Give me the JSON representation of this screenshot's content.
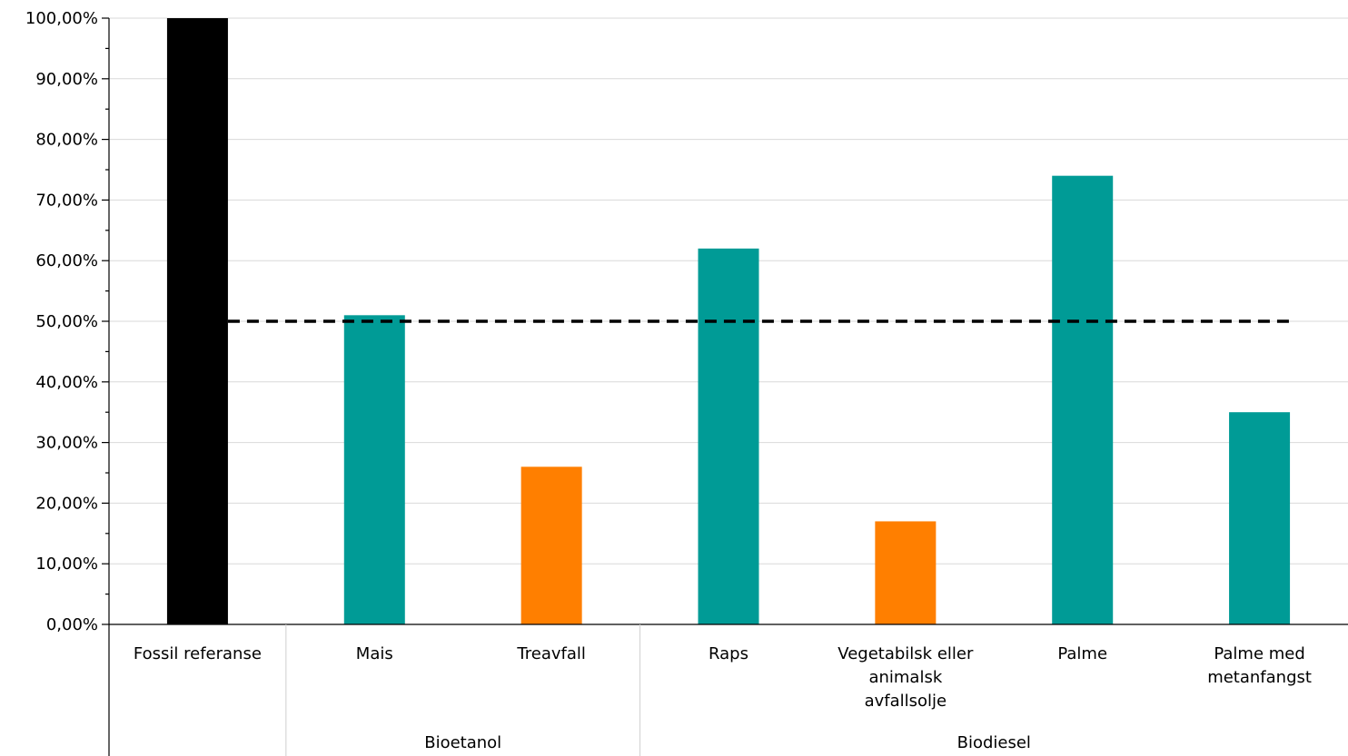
{
  "chart_data": {
    "type": "bar",
    "title": "",
    "xlabel": "",
    "ylabel": "",
    "ylim": [
      0,
      100
    ],
    "y_ticks": [
      "0,00%",
      "10,00%",
      "20,00%",
      "30,00%",
      "40,00%",
      "50,00%",
      "60,00%",
      "70,00%",
      "80,00%",
      "90,00%",
      "100,00%"
    ],
    "grid": true,
    "categories": [
      {
        "label": [
          "Fossil referanse"
        ],
        "value": 100,
        "color": "#000000"
      },
      {
        "label": [
          "Mais"
        ],
        "value": 51,
        "color": "#009b96"
      },
      {
        "label": [
          "Treavfall"
        ],
        "value": 26,
        "color": "#ff7f00"
      },
      {
        "label": [
          "Raps"
        ],
        "value": 62,
        "color": "#009b96"
      },
      {
        "label": [
          "Vegetabilsk eller",
          "animalsk",
          "avfallsolje"
        ],
        "value": 17,
        "color": "#ff7f00"
      },
      {
        "label": [
          "Palme"
        ],
        "value": 74,
        "color": "#009b96"
      },
      {
        "label": [
          "Palme med",
          "metanfangst"
        ],
        "value": 35,
        "color": "#009b96"
      }
    ],
    "groups": [
      {
        "label": "",
        "start": 0,
        "end": 0
      },
      {
        "label": "Bioetanol",
        "start": 1,
        "end": 2
      },
      {
        "label": "Biodiesel",
        "start": 3,
        "end": 6
      }
    ],
    "reference_line": {
      "value": 50,
      "style": "dashed",
      "color": "#000000"
    }
  }
}
